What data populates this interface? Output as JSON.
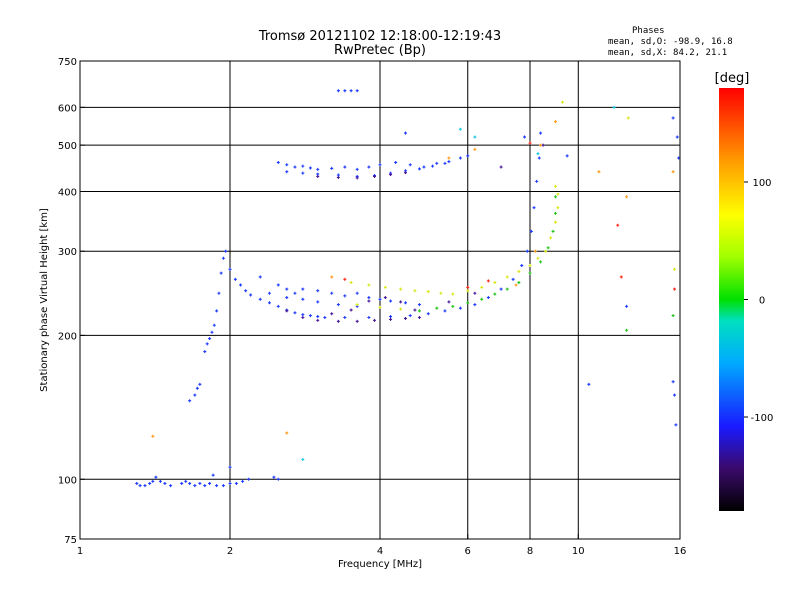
{
  "chart_data": {
    "type": "scatter",
    "title": "Tromsø 20121102 12:18:00-12:19:43",
    "subtitle": "RwPretec (Bp)",
    "xlabel": "Frequency [MHz]",
    "ylabel": "Stationary phase Virtual Height [km]",
    "x_scale": "log",
    "y_scale": "log",
    "xlim": [
      1,
      16
    ],
    "ylim": [
      75,
      750
    ],
    "x_ticks": [
      1,
      2,
      4,
      6,
      8,
      10,
      16
    ],
    "y_ticks": [
      75,
      100,
      200,
      300,
      400,
      500,
      600,
      750
    ],
    "grid": true,
    "stats": {
      "heading": "Phases",
      "line1": "mean, sd,O: -98.9, 16.8",
      "line2": "mean, sd,X:  84.2, 21.1"
    },
    "colorbar": {
      "label": "[deg]",
      "range": [
        -180,
        180
      ],
      "ticks": [
        100,
        0,
        -100
      ]
    },
    "colors": {
      "blue": "#1f3cff",
      "purple": "#4a1a9a",
      "green": "#22c41a",
      "yellow": "#d7e81a",
      "orange": "#ff9a1a",
      "red": "#ff2a1a",
      "cyan": "#18c8e0"
    },
    "series": [
      {
        "color": "blue",
        "points": [
          [
            1.3,
            98
          ],
          [
            1.32,
            97
          ],
          [
            1.35,
            97
          ],
          [
            1.38,
            98
          ],
          [
            1.4,
            99
          ],
          [
            1.42,
            101
          ],
          [
            1.45,
            99
          ],
          [
            1.48,
            98
          ],
          [
            1.52,
            97
          ],
          [
            1.6,
            98
          ],
          [
            1.63,
            99
          ],
          [
            1.66,
            98
          ],
          [
            1.7,
            97
          ],
          [
            1.74,
            98
          ],
          [
            1.78,
            97
          ],
          [
            1.82,
            98
          ],
          [
            1.88,
            97
          ],
          [
            1.94,
            97
          ],
          [
            2.0,
            98
          ],
          [
            2.06,
            98
          ],
          [
            2.12,
            99
          ],
          [
            2.18,
            100
          ],
          [
            1.85,
            102
          ],
          [
            2.0,
            106
          ],
          [
            2.45,
            101
          ],
          [
            2.5,
            100
          ],
          [
            1.66,
            146
          ],
          [
            1.7,
            150
          ],
          [
            1.72,
            155
          ],
          [
            1.74,
            158
          ],
          [
            1.78,
            185
          ],
          [
            1.8,
            192
          ],
          [
            1.82,
            197
          ],
          [
            1.84,
            203
          ],
          [
            1.86,
            210
          ],
          [
            1.88,
            225
          ],
          [
            1.9,
            245
          ],
          [
            1.92,
            270
          ],
          [
            1.94,
            290
          ],
          [
            1.96,
            300
          ],
          [
            2.0,
            275
          ],
          [
            2.05,
            262
          ],
          [
            2.1,
            255
          ],
          [
            2.15,
            248
          ],
          [
            2.2,
            243
          ],
          [
            2.3,
            238
          ],
          [
            2.4,
            234
          ],
          [
            2.5,
            230
          ],
          [
            2.6,
            226
          ],
          [
            2.7,
            223
          ],
          [
            2.8,
            221
          ],
          [
            2.9,
            220
          ],
          [
            3.0,
            219
          ],
          [
            3.1,
            218
          ],
          [
            3.4,
            218
          ],
          [
            3.8,
            218
          ],
          [
            4.2,
            219
          ],
          [
            4.6,
            220
          ],
          [
            5.0,
            222
          ],
          [
            5.4,
            225
          ],
          [
            5.8,
            228
          ],
          [
            6.2,
            232
          ],
          [
            6.6,
            240
          ],
          [
            7.0,
            250
          ],
          [
            7.4,
            262
          ],
          [
            7.7,
            280
          ],
          [
            7.9,
            300
          ],
          [
            8.05,
            330
          ],
          [
            8.15,
            370
          ],
          [
            8.25,
            420
          ],
          [
            8.35,
            470
          ],
          [
            8.4,
            530
          ],
          [
            2.3,
            265
          ],
          [
            2.5,
            255
          ],
          [
            2.6,
            250
          ],
          [
            2.7,
            245
          ],
          [
            2.8,
            250
          ],
          [
            3.0,
            248
          ],
          [
            3.2,
            245
          ],
          [
            3.4,
            242
          ],
          [
            3.6,
            245
          ],
          [
            3.8,
            240
          ],
          [
            4.0,
            238
          ],
          [
            4.2,
            236
          ],
          [
            4.5,
            234
          ],
          [
            4.8,
            232
          ],
          [
            2.4,
            245
          ],
          [
            2.6,
            240
          ],
          [
            2.8,
            238
          ],
          [
            3.0,
            235
          ],
          [
            3.3,
            232
          ],
          [
            3.6,
            230
          ],
          [
            2.5,
            460
          ],
          [
            2.6,
            455
          ],
          [
            2.7,
            450
          ],
          [
            2.8,
            452
          ],
          [
            2.9,
            448
          ],
          [
            3.0,
            445
          ],
          [
            3.2,
            447
          ],
          [
            3.4,
            450
          ],
          [
            3.6,
            445
          ],
          [
            3.8,
            450
          ],
          [
            4.0,
            455
          ],
          [
            4.3,
            460
          ],
          [
            4.6,
            455
          ],
          [
            4.9,
            450
          ],
          [
            5.2,
            458
          ],
          [
            5.5,
            462
          ],
          [
            5.8,
            470
          ],
          [
            6.0,
            475
          ],
          [
            2.6,
            440
          ],
          [
            2.8,
            437
          ],
          [
            3.0,
            435
          ],
          [
            3.3,
            433
          ],
          [
            3.6,
            430
          ],
          [
            3.9,
            432
          ],
          [
            4.2,
            437
          ],
          [
            4.5,
            442
          ],
          [
            4.8,
            446
          ],
          [
            5.1,
            452
          ],
          [
            5.4,
            458
          ],
          [
            3.3,
            650
          ],
          [
            3.4,
            650
          ],
          [
            3.5,
            650
          ],
          [
            3.6,
            650
          ],
          [
            10.5,
            158
          ],
          [
            15.5,
            160
          ],
          [
            15.6,
            150
          ],
          [
            15.7,
            130
          ],
          [
            15.8,
            520
          ],
          [
            15.9,
            470
          ],
          [
            15.5,
            570
          ],
          [
            12.5,
            230
          ],
          [
            4.5,
            530
          ],
          [
            7.8,
            520
          ],
          [
            9.5,
            475
          ]
        ]
      },
      {
        "color": "purple",
        "points": [
          [
            2.6,
            225
          ],
          [
            2.8,
            218
          ],
          [
            3.0,
            215
          ],
          [
            3.3,
            214
          ],
          [
            3.6,
            214
          ],
          [
            3.9,
            215
          ],
          [
            4.2,
            216
          ],
          [
            4.5,
            217
          ],
          [
            4.8,
            218
          ],
          [
            3.2,
            222
          ],
          [
            3.5,
            226
          ],
          [
            3.8,
            236
          ],
          [
            4.1,
            240
          ],
          [
            4.4,
            235
          ],
          [
            4.7,
            226
          ],
          [
            5.5,
            235
          ],
          [
            6.2,
            245
          ],
          [
            3.0,
            430
          ],
          [
            3.3,
            428
          ],
          [
            3.6,
            427
          ],
          [
            3.9,
            430
          ],
          [
            4.2,
            434
          ],
          [
            4.5,
            438
          ],
          [
            8.5,
            500
          ],
          [
            7.0,
            450
          ]
        ]
      },
      {
        "color": "green",
        "points": [
          [
            4.8,
            225
          ],
          [
            5.2,
            228
          ],
          [
            5.6,
            230
          ],
          [
            6.0,
            234
          ],
          [
            6.4,
            238
          ],
          [
            6.8,
            244
          ],
          [
            7.2,
            250
          ],
          [
            7.6,
            258
          ],
          [
            8.0,
            270
          ],
          [
            8.4,
            285
          ],
          [
            8.7,
            305
          ],
          [
            8.9,
            330
          ],
          [
            9.0,
            360
          ],
          [
            9.0,
            390
          ],
          [
            15.5,
            220
          ],
          [
            12.5,
            205
          ]
        ]
      },
      {
        "color": "yellow",
        "points": [
          [
            3.5,
            258
          ],
          [
            3.8,
            255
          ],
          [
            4.1,
            252
          ],
          [
            4.4,
            250
          ],
          [
            4.7,
            248
          ],
          [
            5.0,
            247
          ],
          [
            5.3,
            245
          ],
          [
            5.6,
            244
          ],
          [
            6.0,
            248
          ],
          [
            6.4,
            252
          ],
          [
            6.8,
            258
          ],
          [
            7.2,
            265
          ],
          [
            7.6,
            272
          ],
          [
            8.0,
            280
          ],
          [
            8.3,
            290
          ],
          [
            8.6,
            300
          ],
          [
            8.8,
            320
          ],
          [
            9.0,
            345
          ],
          [
            9.1,
            370
          ],
          [
            9.1,
            395
          ],
          [
            9.0,
            410
          ],
          [
            3.6,
            232
          ],
          [
            4.0,
            229
          ],
          [
            4.4,
            227
          ],
          [
            9.3,
            615
          ],
          [
            12.6,
            570
          ],
          [
            15.6,
            275
          ]
        ]
      },
      {
        "color": "orange",
        "points": [
          [
            1.4,
            123
          ],
          [
            2.6,
            125
          ],
          [
            3.2,
            265
          ],
          [
            5.5,
            470
          ],
          [
            6.2,
            490
          ],
          [
            7.5,
            255
          ],
          [
            8.4,
            500
          ],
          [
            9.0,
            560
          ],
          [
            11.0,
            440
          ],
          [
            12.5,
            390
          ],
          [
            15.5,
            440
          ],
          [
            8.2,
            300
          ]
        ]
      },
      {
        "color": "red",
        "points": [
          [
            3.4,
            262
          ],
          [
            6.0,
            252
          ],
          [
            8.0,
            505
          ],
          [
            12.2,
            265
          ],
          [
            12.0,
            340
          ],
          [
            15.6,
            250
          ],
          [
            6.6,
            260
          ]
        ]
      },
      {
        "color": "cyan",
        "points": [
          [
            5.8,
            540
          ],
          [
            6.2,
            520
          ],
          [
            11.8,
            600
          ],
          [
            2.8,
            110
          ],
          [
            8.3,
            480
          ]
        ]
      }
    ]
  }
}
